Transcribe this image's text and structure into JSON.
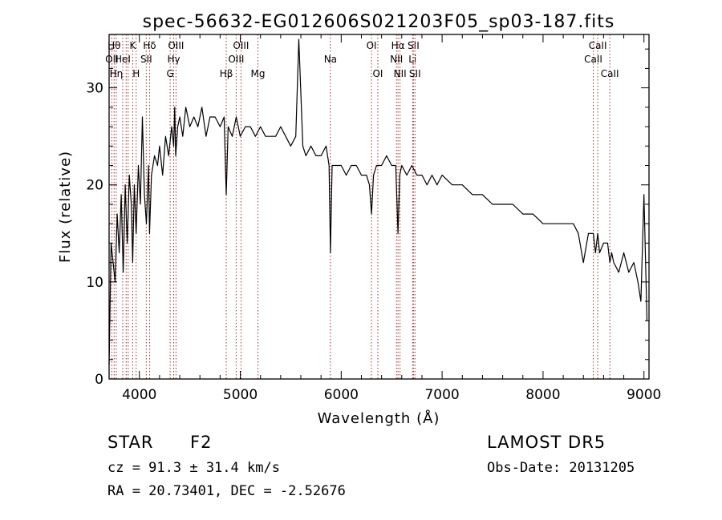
{
  "chart_data": {
    "type": "line",
    "title": "spec-56632-EG012606S021203F05_sp03-187.fits",
    "xlabel": "Wavelength (Å)",
    "ylabel": "Flux (relative)",
    "xlim": [
      3700,
      9050
    ],
    "ylim": [
      0,
      35.5
    ],
    "xticks": [
      4000,
      5000,
      6000,
      7000,
      8000,
      9000
    ],
    "yticks": [
      0,
      10,
      20,
      30
    ],
    "grid": false,
    "series": [
      {
        "line_color": "#000000",
        "x": [
          3700,
          3720,
          3740,
          3760,
          3780,
          3800,
          3820,
          3840,
          3860,
          3880,
          3900,
          3920,
          3934,
          3950,
          3968,
          3990,
          4010,
          4030,
          4050,
          4070,
          4090,
          4101,
          4120,
          4150,
          4180,
          4200,
          4230,
          4260,
          4290,
          4320,
          4340,
          4350,
          4360,
          4380,
          4400,
          4430,
          4460,
          4500,
          4540,
          4580,
          4620,
          4660,
          4700,
          4750,
          4800,
          4840,
          4861,
          4880,
          4920,
          4960,
          5000,
          5050,
          5100,
          5150,
          5200,
          5250,
          5300,
          5350,
          5400,
          5450,
          5500,
          5550,
          5580,
          5620,
          5650,
          5700,
          5750,
          5800,
          5850,
          5880,
          5893,
          5910,
          5950,
          6000,
          6050,
          6100,
          6150,
          6200,
          6250,
          6280,
          6300,
          6320,
          6350,
          6400,
          6450,
          6500,
          6540,
          6563,
          6580,
          6600,
          6650,
          6700,
          6750,
          6800,
          6850,
          6900,
          6950,
          7000,
          7100,
          7200,
          7300,
          7400,
          7500,
          7600,
          7700,
          7800,
          7900,
          8000,
          8100,
          8200,
          8300,
          8350,
          8400,
          8450,
          8498,
          8520,
          8542,
          8560,
          8600,
          8640,
          8662,
          8680,
          8700,
          8750,
          8800,
          8850,
          8900,
          8940,
          8970,
          9000,
          9030
        ],
        "y": [
          1.5,
          14,
          12,
          10,
          17,
          13,
          19,
          11,
          20,
          14,
          21,
          18,
          12,
          20,
          15,
          22,
          18,
          27,
          19,
          16,
          22,
          15,
          21,
          23,
          22,
          24,
          21,
          25,
          23,
          26,
          24,
          28,
          23,
          26,
          27,
          25,
          28,
          26,
          27,
          26,
          28,
          25,
          27,
          27,
          26,
          27,
          19,
          26,
          25,
          27,
          25,
          26,
          26,
          25,
          26,
          25,
          25,
          25,
          26,
          25,
          24,
          25,
          35,
          24,
          23,
          24,
          23,
          23,
          24,
          22,
          13,
          22,
          22,
          22,
          21,
          22,
          22,
          21,
          21,
          20,
          17,
          21,
          22,
          22,
          23,
          22,
          22,
          15,
          21,
          22,
          21,
          22,
          21,
          21,
          20,
          21,
          20,
          21,
          20,
          20,
          19,
          19,
          18,
          18,
          18,
          17,
          17,
          16,
          16,
          16,
          16,
          15,
          12,
          15,
          15,
          13,
          15,
          13,
          14,
          14,
          12,
          13,
          12,
          11,
          13,
          11,
          12,
          10,
          8,
          19,
          6
        ]
      }
    ],
    "line_markers": [
      {
        "wavelength": 3727,
        "label": "OII",
        "row": 1
      },
      {
        "wavelength": 3750,
        "label": "Hθ",
        "row": 0
      },
      {
        "wavelength": 3771,
        "label": "Hη",
        "row": 2
      },
      {
        "wavelength": 3835,
        "label": "HeI",
        "row": 1
      },
      {
        "wavelength": 3869,
        "label": "",
        "row": -1
      },
      {
        "wavelength": 3889,
        "label": "",
        "row": -1
      },
      {
        "wavelength": 3934,
        "label": "K",
        "row": 0
      },
      {
        "wavelength": 3968,
        "label": "H",
        "row": 2
      },
      {
        "wavelength": 4068,
        "label": "SII",
        "row": 1
      },
      {
        "wavelength": 4101,
        "label": "Hδ",
        "row": 0
      },
      {
        "wavelength": 4305,
        "label": "G",
        "row": 2
      },
      {
        "wavelength": 4340,
        "label": "Hγ",
        "row": 1
      },
      {
        "wavelength": 4363,
        "label": "OIII",
        "row": 0
      },
      {
        "wavelength": 4861,
        "label": "Hβ",
        "row": 2
      },
      {
        "wavelength": 4959,
        "label": "OIII",
        "row": 1
      },
      {
        "wavelength": 5007,
        "label": "OIII",
        "row": 0
      },
      {
        "wavelength": 5175,
        "label": "Mg",
        "row": 2
      },
      {
        "wavelength": 5893,
        "label": "Na",
        "row": 1
      },
      {
        "wavelength": 6300,
        "label": "OI",
        "row": 0
      },
      {
        "wavelength": 6363,
        "label": "OI",
        "row": 2
      },
      {
        "wavelength": 6548,
        "label": "NII",
        "row": 1
      },
      {
        "wavelength": 6563,
        "label": "Hα",
        "row": 0
      },
      {
        "wavelength": 6583,
        "label": "NII",
        "row": 2
      },
      {
        "wavelength": 6707,
        "label": "Li",
        "row": 1
      },
      {
        "wavelength": 6716,
        "label": "SII",
        "row": 0
      },
      {
        "wavelength": 6731,
        "label": "SII",
        "row": 2
      },
      {
        "wavelength": 8498,
        "label": "CaII",
        "row": 1
      },
      {
        "wavelength": 8542,
        "label": "CaII",
        "row": 0
      },
      {
        "wavelength": 8662,
        "label": "CaII",
        "row": 2
      }
    ],
    "marker_color": "#a52a2a"
  },
  "info": {
    "object_class": "STAR",
    "subclass": "F2",
    "redshift_text": "cz = 91.3 ± 31.4 km/s",
    "coords_text": "RA =  20.73401, DEC =  -2.52676",
    "survey": "LAMOST DR5",
    "obs_date_text": "Obs-Date: 20131205"
  }
}
